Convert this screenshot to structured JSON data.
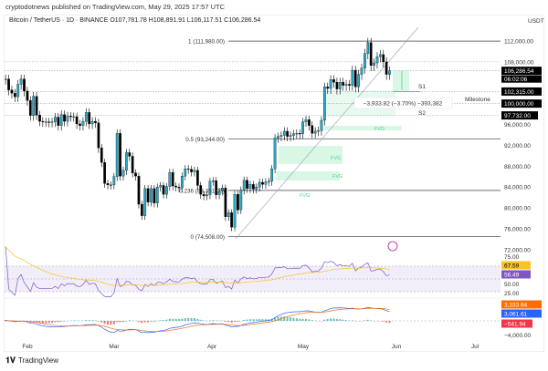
{
  "publisher_line": "cryptodotnews published on TradingView.com, May 29, 2025 17:57 UTC",
  "symbol_line": "Bitcoin / TetherUS · 1D · BINANCE  O107,781.78  H108,891.91  L106,117.51  C106,286.54",
  "currency": "USDT",
  "footer_brand": "TradingView",
  "price_axis": [
    "112,000.00",
    "108,000.00",
    "100,000.00",
    "96,000.00",
    "92,000.00",
    "88,000.00",
    "84,000.00",
    "80,000.00",
    "76,000.00",
    "72,000.00"
  ],
  "price_axis_values": [
    112000,
    108000,
    100000,
    96000,
    92000,
    88000,
    84000,
    80000,
    76000,
    72000
  ],
  "tags": {
    "current": {
      "price": "106,286.54",
      "countdown": "06:02:06",
      "value": 106286.54,
      "color": "#000000"
    },
    "s1": {
      "price": "102,315.00",
      "value": 102315,
      "label": "S1"
    },
    "milestone": {
      "price": "100,000.00",
      "value": 100000,
      "label": "Milestone"
    },
    "s2": {
      "price": "97,732.00",
      "value": 97732,
      "label": "S2"
    }
  },
  "fib": [
    {
      "label": "1 (111,980.00)",
      "value": 111980
    },
    {
      "label": "0.5 (93,244.00)",
      "value": 93244
    },
    {
      "label": "0.236 (83,351.00)",
      "value": 83351
    },
    {
      "label": "0 (74,508.00)",
      "value": 74508
    }
  ],
  "measure_label": "−3,933.82 (−3.70%) −393,382",
  "fvg_label": "FVG",
  "date_axis": [
    "Feb",
    "Mar",
    "Apr",
    "May",
    "Jun",
    "Jul"
  ],
  "rsi": {
    "levels": [
      "75.00",
      "50.00",
      "25.00"
    ],
    "value_a": "67.59",
    "value_b": "56.49",
    "color_a": "#f7c325",
    "color_b": "#7e57c2"
  },
  "macd": {
    "value_orange": "3,333.64",
    "value_blue": "3,061.61",
    "value_hist": "−541.94",
    "level": "−4,000.00",
    "color_blue": "#2962ff",
    "color_orange": "#ff6d00",
    "color_hist": "#f23645"
  },
  "colors": {
    "up": "#26a9c7",
    "down": "#000000",
    "fvg": "#d8f7e4"
  },
  "candles": {
    "start": "2025-01-22",
    "closes": [
      103600,
      104000,
      104700,
      104700,
      102600,
      102000,
      101300,
      103700,
      104700,
      102400,
      100600,
      97700,
      101400,
      97800,
      96600,
      96500,
      96500,
      96400,
      96500,
      97400,
      95800,
      97900,
      96600,
      97600,
      97500,
      97500,
      96100,
      95800,
      96600,
      98300,
      96100,
      96600,
      96300,
      91500,
      88700,
      84700,
      84400,
      84400,
      86000,
      94300,
      86100,
      87200,
      90600,
      89900,
      86700,
      86100,
      80700,
      78500,
      83700,
      81100,
      83700,
      80900,
      84000,
      84300,
      82600,
      84100,
      86800,
      84200,
      84000,
      83800,
      86100,
      87500,
      87400,
      86900,
      87200,
      84300,
      82600,
      82300,
      82500,
      85100,
      85200,
      82500,
      83200,
      83800,
      78300,
      79100,
      76300,
      82600,
      79600,
      83400,
      85300,
      83700,
      84500,
      83600,
      84000,
      84900,
      84500,
      85000,
      85100,
      87500,
      93400,
      93700,
      93900,
      94700,
      93700,
      93900,
      94200,
      94300,
      94200,
      96500,
      96900,
      95800,
      94300,
      94700,
      94800,
      96800,
      103200,
      102900,
      104600,
      104100,
      102800,
      104100,
      103500,
      103700,
      103500,
      106400,
      103200,
      105600,
      106800,
      109600,
      111700,
      107300,
      107800,
      109000,
      109400,
      108000,
      105600,
      106286
    ]
  }
}
